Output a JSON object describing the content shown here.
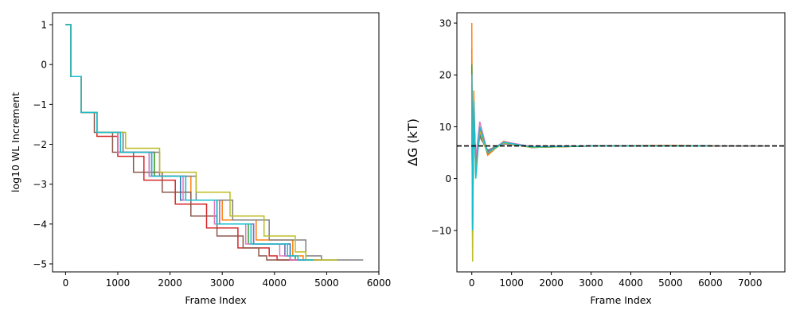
{
  "colors": [
    "#1f77b4",
    "#ff7f0e",
    "#2ca02c",
    "#d62728",
    "#9467bd",
    "#8c564b",
    "#e377c2",
    "#7f7f7f",
    "#bcbd22",
    "#17becf"
  ],
  "chart_data": [
    {
      "type": "line",
      "title": "",
      "xlabel": "Frame Index",
      "ylabel": "log10 WL Increment",
      "xlim": [
        -250,
        6000
      ],
      "ylim": [
        -5.2,
        1.3
      ],
      "xticks": [
        0,
        1000,
        2000,
        3000,
        4000,
        5000,
        6000
      ],
      "yticks": [
        1,
        0,
        -1,
        -2,
        -3,
        -4,
        -5
      ],
      "grid": false,
      "legend": "none",
      "step": true,
      "series": [
        {
          "x": [
            0,
            100,
            300,
            600,
            1000,
            1600,
            2200,
            2900,
            3600,
            4300,
            4520,
            4900
          ],
          "y": [
            1.0,
            -0.3,
            -1.2,
            -1.7,
            -2.2,
            -2.8,
            -3.4,
            -4.0,
            -4.5,
            -4.9,
            -4.9,
            -4.9
          ]
        },
        {
          "x": [
            0,
            100,
            300,
            600,
            1000,
            1700,
            2400,
            3000,
            3650,
            4350,
            4550,
            4850
          ],
          "y": [
            1.0,
            -0.3,
            -1.2,
            -1.7,
            -2.2,
            -2.8,
            -3.4,
            -3.9,
            -4.4,
            -4.8,
            -4.9,
            -4.9
          ]
        },
        {
          "x": [
            0,
            100,
            300,
            600,
            1100,
            1700,
            2300,
            2900,
            3500,
            4200,
            4400,
            4800
          ],
          "y": [
            1.0,
            -0.3,
            -1.2,
            -1.7,
            -2.2,
            -2.8,
            -3.4,
            -4.0,
            -4.5,
            -4.8,
            -4.9,
            -4.9
          ]
        },
        {
          "x": [
            0,
            100,
            300,
            600,
            1000,
            1500,
            2100,
            2700,
            3300,
            3900,
            4050,
            4600
          ],
          "y": [
            1.0,
            -0.3,
            -1.2,
            -1.8,
            -2.3,
            -2.9,
            -3.5,
            -4.1,
            -4.6,
            -4.8,
            -4.9,
            -4.9
          ]
        },
        {
          "x": [
            0,
            100,
            300,
            600,
            1050,
            1650,
            2300,
            2950,
            3600,
            4200,
            4300,
            4800
          ],
          "y": [
            1.0,
            -0.3,
            -1.2,
            -1.7,
            -2.2,
            -2.8,
            -3.4,
            -4.0,
            -4.5,
            -4.8,
            -4.9,
            -4.9
          ]
        },
        {
          "x": [
            0,
            100,
            300,
            550,
            900,
            1300,
            1850,
            2400,
            2900,
            3400,
            3700,
            3850,
            4400
          ],
          "y": [
            1.0,
            -0.3,
            -1.2,
            -1.7,
            -2.2,
            -2.7,
            -3.2,
            -3.8,
            -4.3,
            -4.6,
            -4.8,
            -4.9,
            -4.9
          ]
        },
        {
          "x": [
            0,
            100,
            300,
            600,
            1000,
            1600,
            2250,
            2850,
            3450,
            4100,
            4300,
            4900
          ],
          "y": [
            1.0,
            -0.3,
            -1.2,
            -1.7,
            -2.2,
            -2.8,
            -3.4,
            -4.0,
            -4.5,
            -4.8,
            -4.9,
            -4.9
          ]
        },
        {
          "x": [
            0,
            100,
            300,
            600,
            1100,
            1800,
            2500,
            3200,
            3900,
            4600,
            4900,
            5700
          ],
          "y": [
            1.0,
            -0.3,
            -1.2,
            -1.7,
            -2.2,
            -2.8,
            -3.4,
            -3.9,
            -4.4,
            -4.8,
            -4.9,
            -4.9
          ]
        },
        {
          "x": [
            0,
            100,
            300,
            600,
            1150,
            1800,
            2500,
            3150,
            3800,
            4400,
            4600,
            5200
          ],
          "y": [
            1.0,
            -0.3,
            -1.2,
            -1.7,
            -2.1,
            -2.7,
            -3.2,
            -3.8,
            -4.3,
            -4.7,
            -4.9,
            -4.9
          ]
        },
        {
          "x": [
            0,
            100,
            300,
            600,
            1050,
            1650,
            2300,
            2900,
            3550,
            4250,
            4450,
            4750
          ],
          "y": [
            1.0,
            -0.3,
            -1.2,
            -1.7,
            -2.2,
            -2.8,
            -3.4,
            -4.0,
            -4.5,
            -4.8,
            -4.9,
            -4.9
          ]
        }
      ]
    },
    {
      "type": "line",
      "title": "",
      "xlabel": "Frame Index",
      "ylabel": "ΔG (kT)",
      "xlim": [
        -375,
        7875
      ],
      "ylim": [
        -18,
        32
      ],
      "xticks": [
        0,
        1000,
        2000,
        3000,
        4000,
        5000,
        6000,
        7000
      ],
      "yticks": [
        30,
        20,
        10,
        0,
        -10
      ],
      "grid": false,
      "legend": "none",
      "reference_line": {
        "y": 6.3,
        "style": "dashed",
        "color": "#000000"
      },
      "series": [
        {
          "x": [
            0,
            20,
            50,
            100,
            200,
            400,
            800,
            1500,
            3000,
            5000,
            6200
          ],
          "y": [
            25.0,
            -8.0,
            14.0,
            2.0,
            9.0,
            5.0,
            7.0,
            6.0,
            6.3,
            6.3,
            6.3
          ]
        },
        {
          "x": [
            0,
            20,
            50,
            100,
            200,
            400,
            800,
            1500,
            3000,
            5000,
            6200
          ],
          "y": [
            30.0,
            -12.0,
            17.0,
            1.0,
            10.0,
            4.5,
            7.2,
            6.0,
            6.3,
            6.4,
            6.3
          ]
        },
        {
          "x": [
            0,
            20,
            50,
            100,
            200,
            400,
            800,
            1500,
            3000,
            5000,
            6000
          ],
          "y": [
            22.0,
            -6.0,
            12.0,
            3.0,
            8.5,
            5.0,
            6.8,
            6.1,
            6.3,
            6.3,
            6.3
          ]
        },
        {
          "x": [
            0,
            20,
            50,
            100,
            200,
            400,
            800,
            1500,
            3000,
            5000,
            6000
          ],
          "y": [
            18.0,
            -10.0,
            13.0,
            2.5,
            9.0,
            5.2,
            6.9,
            6.2,
            6.3,
            6.3,
            6.3
          ]
        },
        {
          "x": [
            0,
            20,
            50,
            100,
            200,
            400,
            800,
            1500,
            3000,
            5000,
            6000
          ],
          "y": [
            16.0,
            -9.0,
            14.0,
            3.0,
            8.8,
            5.4,
            6.7,
            6.1,
            6.3,
            6.3,
            6.3
          ]
        },
        {
          "x": [
            0,
            20,
            50,
            100,
            200,
            400,
            800,
            1500,
            3000,
            5000,
            6000
          ],
          "y": [
            15.0,
            -7.0,
            11.0,
            2.0,
            9.5,
            4.8,
            7.0,
            6.0,
            6.3,
            6.3,
            6.3
          ]
        },
        {
          "x": [
            0,
            20,
            50,
            100,
            200,
            400,
            800,
            1500,
            3000,
            5000,
            6000
          ],
          "y": [
            20.0,
            -8.0,
            12.0,
            4.0,
            11.0,
            5.0,
            7.1,
            6.2,
            6.3,
            6.3,
            6.3
          ]
        },
        {
          "x": [
            0,
            20,
            50,
            100,
            200,
            400,
            800,
            1500,
            3000,
            5000,
            7400
          ],
          "y": [
            17.0,
            -9.0,
            13.0,
            3.0,
            8.0,
            5.5,
            6.8,
            6.1,
            6.3,
            6.3,
            6.3
          ]
        },
        {
          "x": [
            0,
            20,
            50,
            100,
            200,
            400,
            800,
            1500,
            3000,
            5000,
            6000
          ],
          "y": [
            18.0,
            -16.0,
            14.0,
            1.0,
            9.2,
            4.9,
            6.9,
            6.0,
            6.3,
            6.3,
            6.3
          ]
        },
        {
          "x": [
            0,
            20,
            50,
            100,
            200,
            400,
            800,
            1500,
            3000,
            5000,
            6000
          ],
          "y": [
            20.0,
            -10.0,
            15.0,
            0.0,
            10.0,
            5.0,
            7.0,
            6.1,
            6.3,
            6.3,
            6.3
          ]
        }
      ]
    }
  ]
}
